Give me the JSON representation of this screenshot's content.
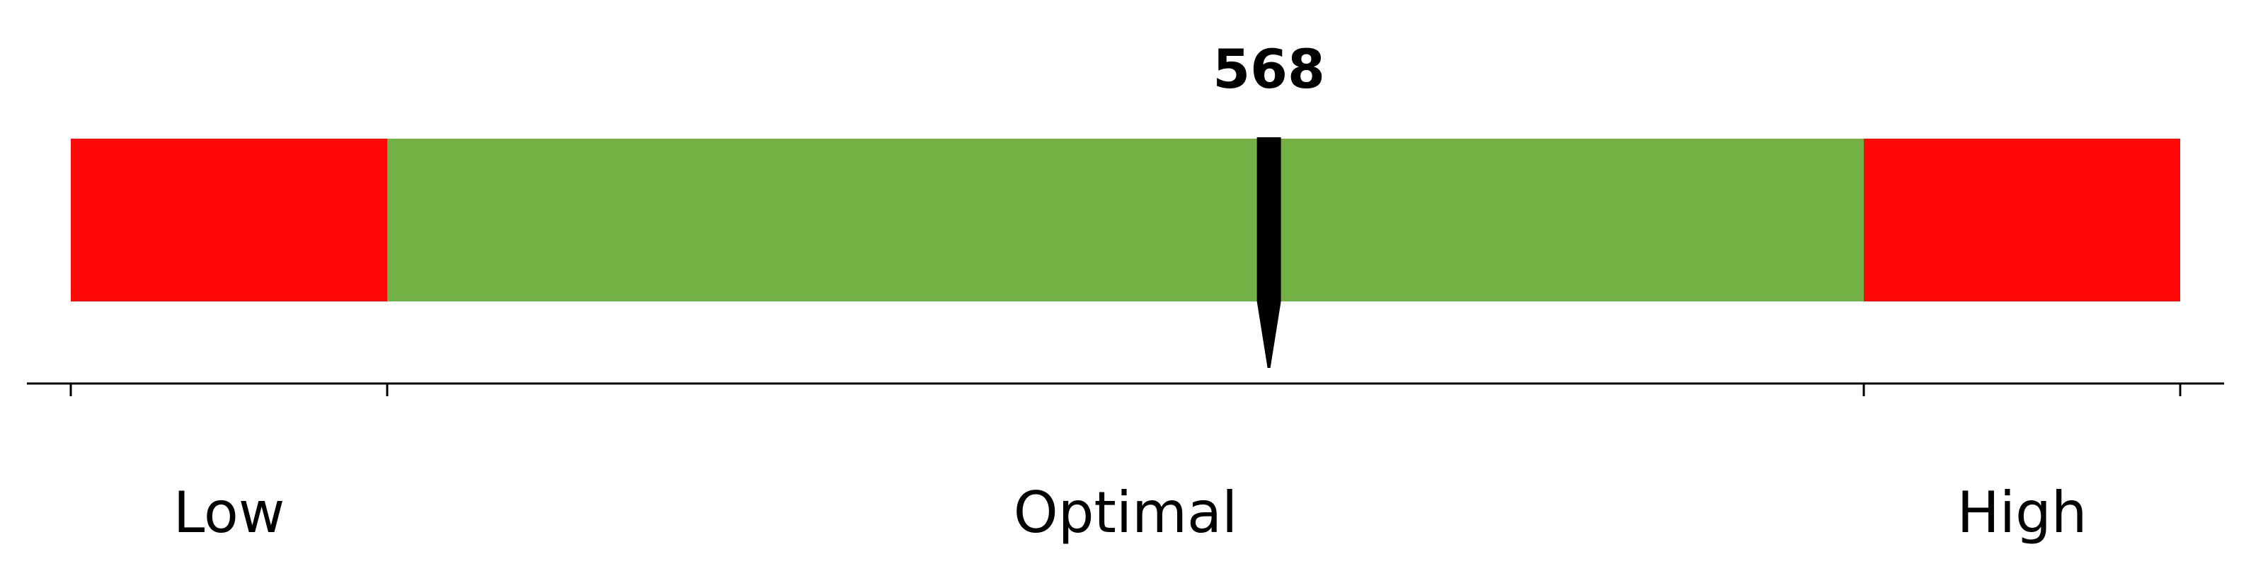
{
  "chart_data": {
    "type": "bar",
    "title": "",
    "value": 568,
    "value_label": "568",
    "x_min": 0,
    "x_max": 1000,
    "segments": [
      {
        "label": "Low",
        "start": 0,
        "end": 150,
        "color": "#ff0707"
      },
      {
        "label": "Optimal",
        "start": 150,
        "end": 850,
        "color": "#72b245"
      },
      {
        "label": "High",
        "start": 850,
        "end": 1000,
        "color": "#ff0707"
      }
    ],
    "ticks": [
      0,
      150,
      850,
      1000
    ],
    "marker_color": "#000000",
    "axis_color": "#000000",
    "grid": false,
    "legend": "none"
  }
}
